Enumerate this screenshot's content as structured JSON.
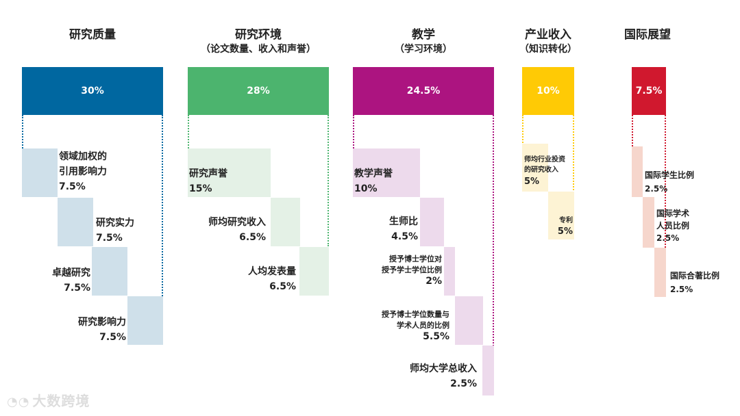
{
  "columns": [
    {
      "title": "研究质量",
      "subtitle": "",
      "weight": "30%",
      "color": "#0067a0",
      "light": "#cfe0ea",
      "items": [
        {
          "label": "领域加权的\n引用影响力",
          "pct": "7.5%"
        },
        {
          "label": "研究实力",
          "pct": "7.5%"
        },
        {
          "label": "卓越研究",
          "pct": "7.5%"
        },
        {
          "label": "研究影响力",
          "pct": "7.5%"
        }
      ]
    },
    {
      "title": "研究环境",
      "subtitle": "（论文数量、收入和声誉）",
      "weight": "28%",
      "color": "#4cb46e",
      "light": "#e4f1e6",
      "items": [
        {
          "label": "研究声誉",
          "pct": "15%"
        },
        {
          "label": "师均研究收入",
          "pct": "6.5%"
        },
        {
          "label": "人均发表量",
          "pct": "6.5%"
        }
      ]
    },
    {
      "title": "教学",
      "subtitle": "（学习环境）",
      "weight": "24.5%",
      "color": "#ac1480",
      "light": "#eddaec",
      "items": [
        {
          "label": "教学声誉",
          "pct": "10%"
        },
        {
          "label": "生师比",
          "pct": "4.5%"
        },
        {
          "label": "授予博士学位对\n授予学士学位比例",
          "pct": "2%"
        },
        {
          "label": "授予博士学位数量与\n学术人员的比例",
          "pct": "5.5%"
        },
        {
          "label": "师均大学总收入",
          "pct": "2.5%"
        }
      ]
    },
    {
      "title": "产业收入",
      "subtitle": "（知识转化）",
      "weight": "10%",
      "color": "#ffca05",
      "light": "#fdf3d4",
      "items": [
        {
          "label": "师均行业投资\n的研究收入",
          "pct": "5%"
        },
        {
          "label": "专利",
          "pct": "5%"
        }
      ]
    },
    {
      "title": "国际展望",
      "subtitle": "",
      "weight": "7.5%",
      "color": "#d0182e",
      "light": "#f6d6cc",
      "items": [
        {
          "label": "国际学生比例",
          "pct": "2.5%"
        },
        {
          "label": "国际学术\n人员比例",
          "pct": "2.5%"
        },
        {
          "label": "国际合著比例",
          "pct": "2.5%"
        }
      ]
    }
  ],
  "watermark": "大数跨境"
}
